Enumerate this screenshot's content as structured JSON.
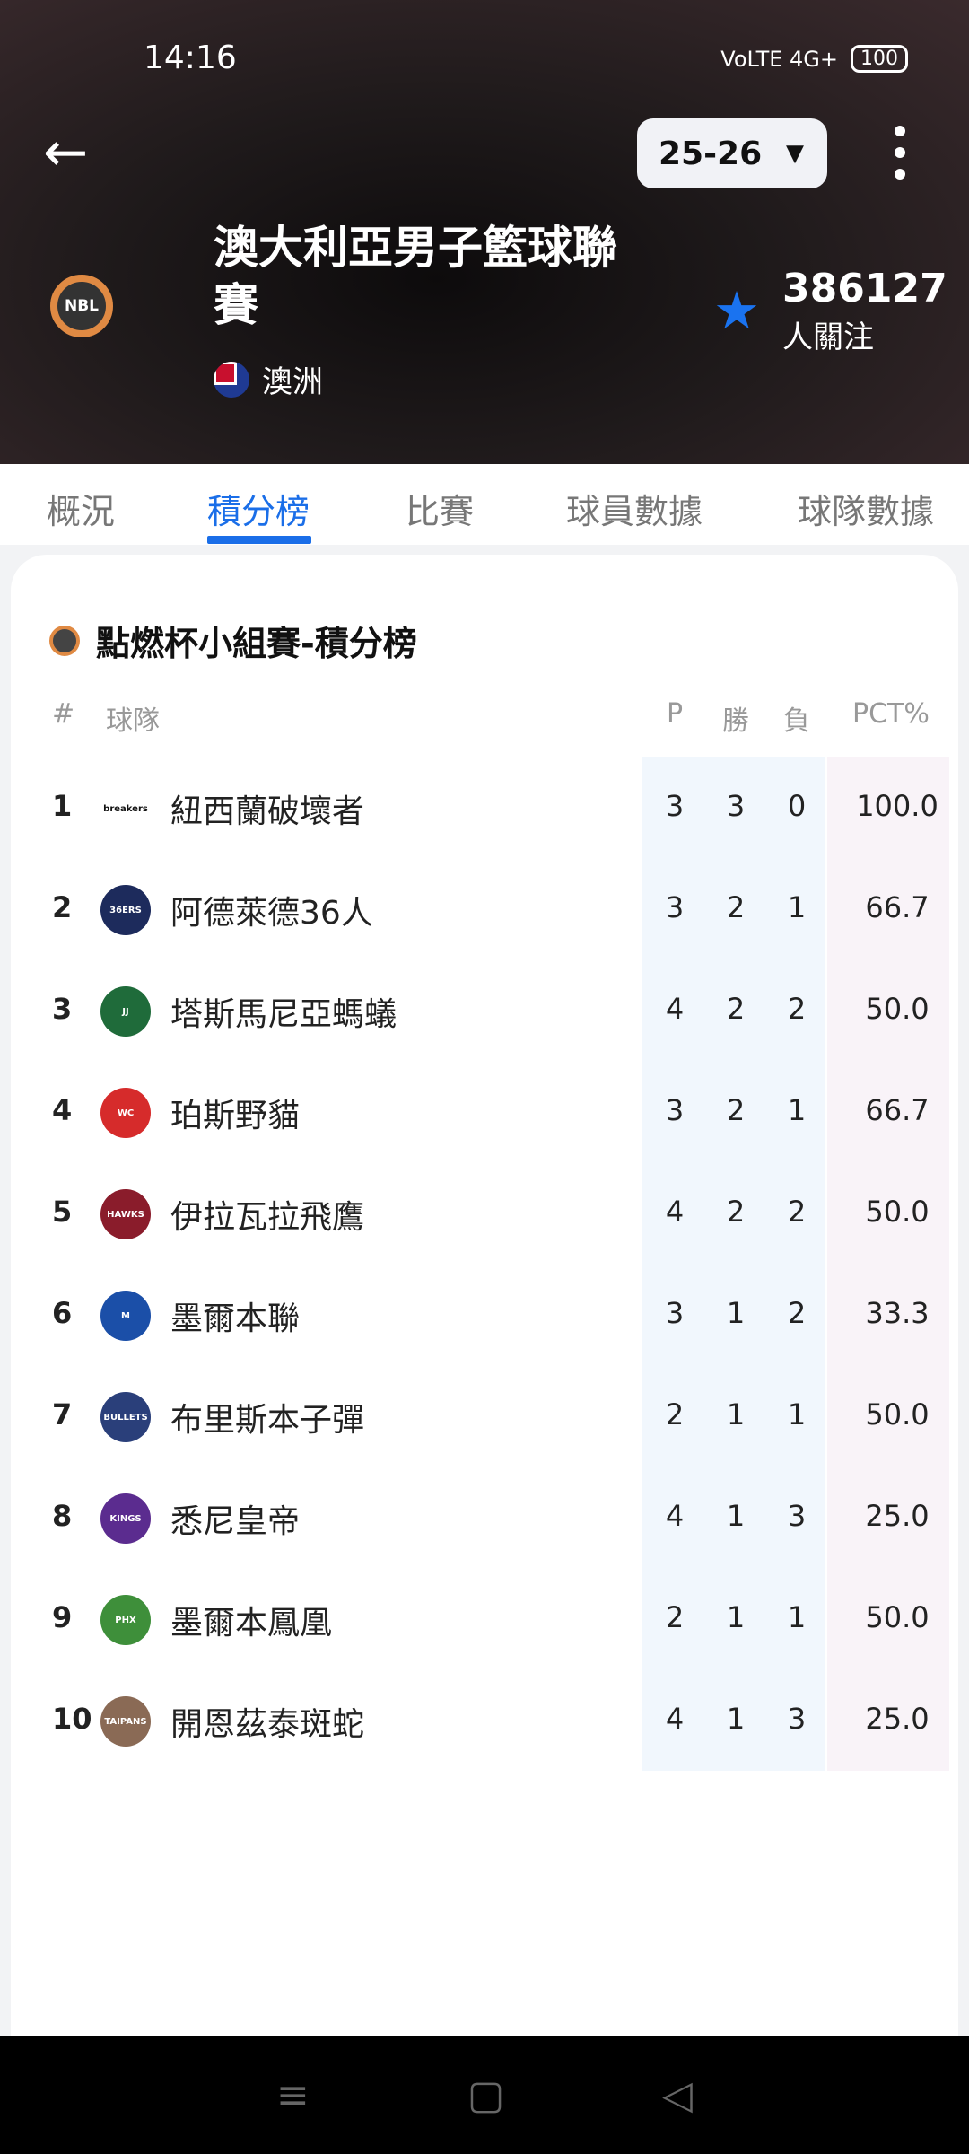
{
  "status_bar": {
    "time": "14:16",
    "network": "VoLTE 4G+",
    "battery": "100"
  },
  "header": {
    "season": "25-26",
    "title": "澳大利亞男子籃球聯賽",
    "region": "澳洲",
    "followers": "386127",
    "followers_label": "人關注",
    "logo_text": "NBL"
  },
  "tabs": [
    {
      "label": "概況"
    },
    {
      "label": "積分榜",
      "active": true
    },
    {
      "label": "比賽"
    },
    {
      "label": "球員數據"
    },
    {
      "label": "球隊數據"
    }
  ],
  "standings": {
    "title": "點燃杯小組賽-積分榜",
    "columns": {
      "rank": "#",
      "team": "球隊",
      "p": "P",
      "w": "勝",
      "l": "負",
      "pct": "PCT%"
    },
    "rows": [
      {
        "rank": "1",
        "team": "紐西蘭破壞者",
        "p": "3",
        "w": "3",
        "l": "0",
        "pct": "100.0",
        "logo_color": "#ffffff",
        "logo_text": "breakers"
      },
      {
        "rank": "2",
        "team": "阿德萊德36人",
        "p": "3",
        "w": "2",
        "l": "1",
        "pct": "66.7",
        "logo_color": "#1d2b5c",
        "logo_text": "36ERS"
      },
      {
        "rank": "3",
        "team": "塔斯馬尼亞螞蟻",
        "p": "4",
        "w": "2",
        "l": "2",
        "pct": "50.0",
        "logo_color": "#1f6b3a",
        "logo_text": "JJ"
      },
      {
        "rank": "4",
        "team": "珀斯野貓",
        "p": "3",
        "w": "2",
        "l": "1",
        "pct": "66.7",
        "logo_color": "#d62b2b",
        "logo_text": "WC"
      },
      {
        "rank": "5",
        "team": "伊拉瓦拉飛鷹",
        "p": "4",
        "w": "2",
        "l": "2",
        "pct": "50.0",
        "logo_color": "#8a1c2b",
        "logo_text": "HAWKS"
      },
      {
        "rank": "6",
        "team": "墨爾本聯",
        "p": "3",
        "w": "1",
        "l": "2",
        "pct": "33.3",
        "logo_color": "#1b4fa8",
        "logo_text": "M"
      },
      {
        "rank": "7",
        "team": "布里斯本子彈",
        "p": "2",
        "w": "1",
        "l": "1",
        "pct": "50.0",
        "logo_color": "#2a3f7a",
        "logo_text": "BULLETS"
      },
      {
        "rank": "8",
        "team": "悉尼皇帝",
        "p": "4",
        "w": "1",
        "l": "3",
        "pct": "25.0",
        "logo_color": "#5b2c8f",
        "logo_text": "KINGS"
      },
      {
        "rank": "9",
        "team": "墨爾本鳳凰",
        "p": "2",
        "w": "1",
        "l": "1",
        "pct": "50.0",
        "logo_color": "#3e8f3a",
        "logo_text": "PHX"
      },
      {
        "rank": "10",
        "team": "開恩茲泰斑蛇",
        "p": "4",
        "w": "1",
        "l": "3",
        "pct": "25.0",
        "logo_color": "#8a6a55",
        "logo_text": "TAIPANS"
      }
    ]
  }
}
